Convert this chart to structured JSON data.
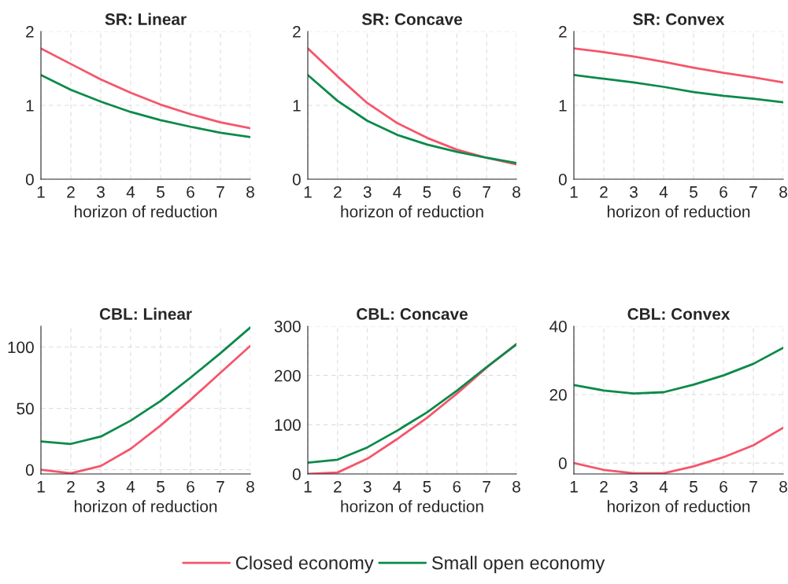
{
  "chart_data": [
    {
      "type": "line",
      "title": "SR: Linear",
      "xlabel": "horizon of reduction",
      "x": [
        1,
        2,
        3,
        4,
        5,
        6,
        7,
        8
      ],
      "xlim": [
        1,
        8
      ],
      "xticks": [
        1,
        2,
        3,
        4,
        5,
        6,
        7,
        8
      ],
      "ylim": [
        0,
        2
      ],
      "yticks": [
        0,
        1,
        2
      ],
      "grid": true,
      "legend": "bottom",
      "line_style": "solid",
      "series": [
        {
          "name": "Closed economy",
          "color": "#f4566b",
          "values": [
            1.77,
            1.56,
            1.35,
            1.17,
            1.01,
            0.88,
            0.77,
            0.69
          ]
        },
        {
          "name": "Small open economy",
          "color": "#0a8a4a",
          "values": [
            1.41,
            1.21,
            1.05,
            0.91,
            0.8,
            0.71,
            0.63,
            0.57
          ]
        }
      ]
    },
    {
      "type": "line",
      "title": "SR: Concave",
      "xlabel": "horizon of reduction",
      "x": [
        1,
        2,
        3,
        4,
        5,
        6,
        7,
        8
      ],
      "xlim": [
        1,
        8
      ],
      "xticks": [
        1,
        2,
        3,
        4,
        5,
        6,
        7,
        8
      ],
      "ylim": [
        0,
        2
      ],
      "yticks": [
        0,
        1,
        2
      ],
      "grid": true,
      "line_style": "solid",
      "series": [
        {
          "color": "#f4566b",
          "values": [
            1.77,
            1.39,
            1.03,
            0.76,
            0.56,
            0.4,
            0.29,
            0.2
          ]
        },
        {
          "color": "#0a8a4a",
          "values": [
            1.41,
            1.06,
            0.79,
            0.6,
            0.47,
            0.37,
            0.29,
            0.22
          ]
        }
      ]
    },
    {
      "type": "line",
      "title": "SR: Convex",
      "xlabel": "horizon of reduction",
      "x": [
        1,
        2,
        3,
        4,
        5,
        6,
        7,
        8
      ],
      "xlim": [
        1,
        8
      ],
      "xticks": [
        1,
        2,
        3,
        4,
        5,
        6,
        7,
        8
      ],
      "ylim": [
        0,
        2
      ],
      "yticks": [
        0,
        1,
        2
      ],
      "grid": true,
      "line_style": "solid",
      "series": [
        {
          "color": "#f4566b",
          "values": [
            1.77,
            1.72,
            1.66,
            1.59,
            1.51,
            1.44,
            1.38,
            1.31
          ]
        },
        {
          "color": "#0a8a4a",
          "values": [
            1.41,
            1.36,
            1.31,
            1.25,
            1.18,
            1.13,
            1.09,
            1.04
          ]
        }
      ]
    },
    {
      "type": "line",
      "title": "CBL: Linear",
      "xlabel": "horizon of reduction",
      "x": [
        1,
        2,
        3,
        4,
        5,
        6,
        7,
        8
      ],
      "xlim": [
        1,
        8
      ],
      "xticks": [
        1,
        2,
        3,
        4,
        5,
        6,
        7,
        8
      ],
      "ylim": [
        -3.5,
        117
      ],
      "yticks": [
        0,
        50,
        100
      ],
      "grid": true,
      "line_style": "solid",
      "series": [
        {
          "color": "#f4566b",
          "values": [
            0,
            -3,
            3,
            17,
            36,
            57,
            79,
            101
          ]
        },
        {
          "color": "#0a8a4a",
          "values": [
            23,
            21,
            27,
            40,
            56,
            75,
            95,
            116
          ]
        }
      ]
    },
    {
      "type": "line",
      "title": "CBL: Concave",
      "xlabel": "horizon of reduction",
      "x": [
        1,
        2,
        3,
        4,
        5,
        6,
        7,
        8
      ],
      "xlim": [
        1,
        8
      ],
      "xticks": [
        1,
        2,
        3,
        4,
        5,
        6,
        7,
        8
      ],
      "ylim": [
        0,
        300
      ],
      "yticks": [
        0,
        100,
        200,
        300
      ],
      "grid": true,
      "line_style": "solid",
      "series": [
        {
          "color": "#f4566b",
          "values": [
            0,
            3,
            31,
            71,
            114,
            163,
            216,
            264
          ]
        },
        {
          "color": "#0a8a4a",
          "values": [
            23,
            29,
            54,
            88,
            125,
            169,
            217,
            263
          ]
        }
      ]
    },
    {
      "type": "line",
      "title": "CBL: Convex",
      "xlabel": "horizon of reduction",
      "x": [
        1,
        2,
        3,
        4,
        5,
        6,
        7,
        8
      ],
      "xlim": [
        1,
        8
      ],
      "xticks": [
        1,
        2,
        3,
        4,
        5,
        6,
        7,
        8
      ],
      "ylim": [
        -3.2,
        40
      ],
      "yticks": [
        0,
        20,
        40
      ],
      "grid": true,
      "line_style": "solid",
      "series": [
        {
          "color": "#f4566b",
          "values": [
            0,
            -2,
            -3,
            -3,
            -1,
            1.7,
            5.2,
            10.3
          ]
        },
        {
          "color": "#0a8a4a",
          "values": [
            22.8,
            21.2,
            20.3,
            20.7,
            22.9,
            25.6,
            29,
            33.7
          ]
        }
      ]
    }
  ]
}
